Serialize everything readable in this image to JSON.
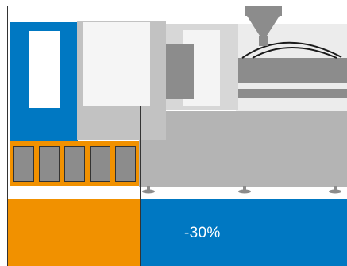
{
  "colors": {
    "blue": "#0078c2",
    "orange": "#f19100",
    "gray_light": "#d7d7d7",
    "gray_mid": "#b4b4b4",
    "gray_dark": "#8c8c8c",
    "window": "#f2f2f2",
    "outline": "#333333"
  },
  "figure": {
    "reduction_label": "-30%"
  }
}
